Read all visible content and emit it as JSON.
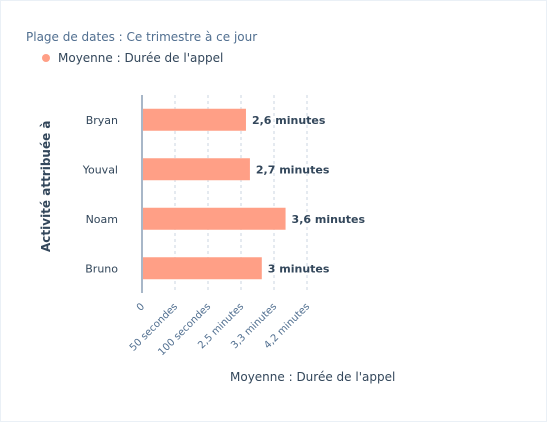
{
  "filter_text": "Plage de dates : Ce trimestre à ce jour",
  "legend": {
    "label": "Moyenne : Durée de l'appel",
    "color": "#ff9f86"
  },
  "chart_data": {
    "type": "bar",
    "orientation": "horizontal",
    "categories": [
      "Bryan",
      "Youval",
      "Noam",
      "Bruno"
    ],
    "values": [
      156,
      162,
      216,
      180
    ],
    "value_labels": [
      "2,6 minutes",
      "2,7 minutes",
      "3,6 minutes",
      "3 minutes"
    ],
    "unit": "seconds",
    "xlabel": "Moyenne : Durée de l'appel",
    "ylabel": "Activité attribuée à",
    "x_ticks": [
      {
        "value": 0,
        "label": "0"
      },
      {
        "value": 50,
        "label": "50 secondes"
      },
      {
        "value": 100,
        "label": "100 secondes"
      },
      {
        "value": 150,
        "label": "2,5 minutes"
      },
      {
        "value": 200,
        "label": "3,3 minutes"
      },
      {
        "value": 250,
        "label": "4,2 minutes"
      }
    ],
    "xlim": [
      0,
      250
    ],
    "grid": true,
    "bar_color": "#ff9f86"
  }
}
